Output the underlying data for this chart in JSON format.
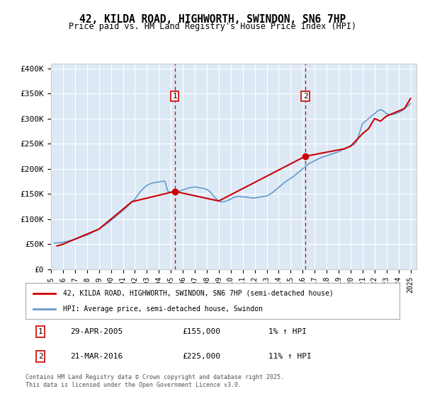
{
  "title": "42, KILDA ROAD, HIGHWORTH, SWINDON, SN6 7HP",
  "subtitle": "Price paid vs. HM Land Registry's House Price Index (HPI)",
  "ylabel_ticks": [
    "£0",
    "£50K",
    "£100K",
    "£150K",
    "£200K",
    "£250K",
    "£300K",
    "£350K",
    "£400K"
  ],
  "ytick_values": [
    0,
    50000,
    100000,
    150000,
    200000,
    250000,
    300000,
    350000,
    400000
  ],
  "ylim": [
    0,
    410000
  ],
  "xlim_start": 1995.0,
  "xlim_end": 2025.5,
  "background_color": "#dce9f5",
  "plot_bg": "#dce9f5",
  "red_line_color": "#cc0000",
  "blue_line_color": "#6699cc",
  "purchase1_x": 2005.33,
  "purchase1_y": 155000,
  "purchase2_x": 2016.22,
  "purchase2_y": 225000,
  "vline_color": "#cc0000",
  "marker_color": "#cc0000",
  "legend_label_red": "42, KILDA ROAD, HIGHWORTH, SWINDON, SN6 7HP (semi-detached house)",
  "legend_label_blue": "HPI: Average price, semi-detached house, Swindon",
  "note1_box": "1",
  "note2_box": "2",
  "note1_date": "29-APR-2005",
  "note1_price": "£155,000",
  "note1_hpi": "1% ↑ HPI",
  "note2_date": "21-MAR-2016",
  "note2_price": "£225,000",
  "note2_hpi": "11% ↑ HPI",
  "footer": "Contains HM Land Registry data © Crown copyright and database right 2025.\nThis data is licensed under the Open Government Licence v3.0.",
  "hpi_data_x": [
    1995.25,
    1995.5,
    1995.75,
    1996.0,
    1996.25,
    1996.5,
    1996.75,
    1997.0,
    1997.25,
    1997.5,
    1997.75,
    1998.0,
    1998.25,
    1998.5,
    1998.75,
    1999.0,
    1999.25,
    1999.5,
    1999.75,
    2000.0,
    2000.25,
    2000.5,
    2000.75,
    2001.0,
    2001.25,
    2001.5,
    2001.75,
    2002.0,
    2002.25,
    2002.5,
    2002.75,
    2003.0,
    2003.25,
    2003.5,
    2003.75,
    2004.0,
    2004.25,
    2004.5,
    2004.75,
    2005.0,
    2005.25,
    2005.5,
    2005.75,
    2006.0,
    2006.25,
    2006.5,
    2006.75,
    2007.0,
    2007.25,
    2007.5,
    2007.75,
    2008.0,
    2008.25,
    2008.5,
    2008.75,
    2009.0,
    2009.25,
    2009.5,
    2009.75,
    2010.0,
    2010.25,
    2010.5,
    2010.75,
    2011.0,
    2011.25,
    2011.5,
    2011.75,
    2012.0,
    2012.25,
    2012.5,
    2012.75,
    2013.0,
    2013.25,
    2013.5,
    2013.75,
    2014.0,
    2014.25,
    2014.5,
    2014.75,
    2015.0,
    2015.25,
    2015.5,
    2015.75,
    2016.0,
    2016.25,
    2016.5,
    2016.75,
    2017.0,
    2017.25,
    2017.5,
    2017.75,
    2018.0,
    2018.25,
    2018.5,
    2018.75,
    2019.0,
    2019.25,
    2019.5,
    2019.75,
    2020.0,
    2020.25,
    2020.5,
    2020.75,
    2021.0,
    2021.25,
    2021.5,
    2021.75,
    2022.0,
    2022.25,
    2022.5,
    2022.75,
    2023.0,
    2023.25,
    2023.5,
    2023.75,
    2024.0,
    2024.25,
    2024.5,
    2024.75,
    2025.0
  ],
  "hpi_data_y": [
    52000,
    52500,
    53000,
    54000,
    55000,
    56500,
    58000,
    60000,
    62000,
    64000,
    66000,
    68000,
    71000,
    74000,
    77000,
    80000,
    84000,
    88000,
    92000,
    97000,
    102000,
    107000,
    112000,
    117000,
    122000,
    128000,
    134000,
    140000,
    148000,
    156000,
    162000,
    167000,
    170000,
    172000,
    173000,
    174000,
    175000,
    175500,
    155000,
    154000,
    154500,
    155000,
    156000,
    158000,
    160000,
    162000,
    163000,
    164000,
    163000,
    162000,
    161000,
    159000,
    155000,
    148000,
    141000,
    136000,
    134000,
    135000,
    137000,
    140000,
    143000,
    145000,
    145000,
    144000,
    144000,
    143000,
    142000,
    142000,
    143000,
    144000,
    145000,
    146000,
    149000,
    153000,
    158000,
    163000,
    168000,
    173000,
    177000,
    181000,
    185000,
    190000,
    195000,
    200000,
    205000,
    210000,
    213000,
    216000,
    219000,
    222000,
    224000,
    226000,
    228000,
    230000,
    232000,
    234000,
    237000,
    240000,
    243000,
    246000,
    248000,
    254000,
    272000,
    290000,
    295000,
    300000,
    305000,
    310000,
    315000,
    318000,
    315000,
    310000,
    308000,
    308000,
    310000,
    312000,
    315000,
    320000,
    325000,
    330000
  ],
  "price_data_x": [
    1995.5,
    1996.0,
    1999.0,
    2001.75,
    2005.33,
    2009.0,
    2016.22,
    2019.5,
    2020.0,
    2021.0,
    2021.5,
    2022.0,
    2022.5,
    2023.0,
    2023.5,
    2024.0,
    2024.5,
    2025.0
  ],
  "price_data_y": [
    46500,
    50000,
    80000,
    134500,
    155000,
    136000,
    225000,
    240000,
    245000,
    270000,
    280000,
    300000,
    295000,
    305000,
    310000,
    315000,
    320000,
    340000
  ]
}
